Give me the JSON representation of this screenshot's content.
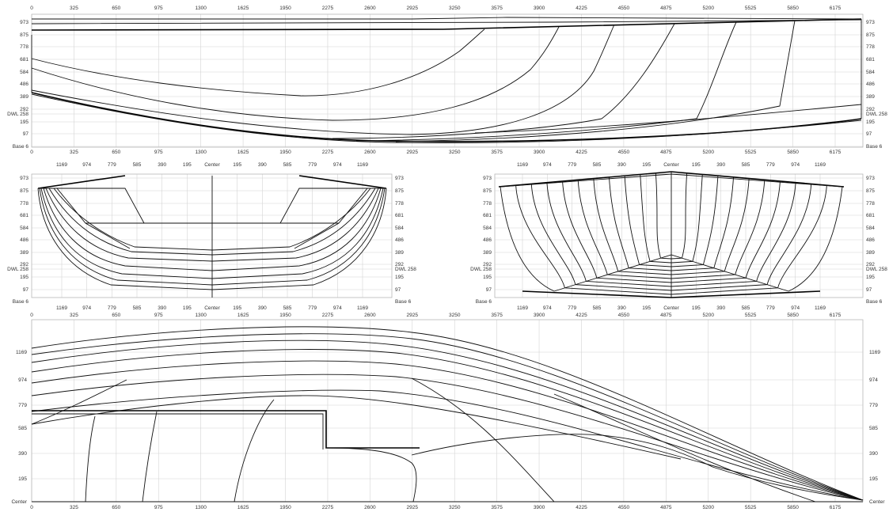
{
  "colors": {
    "line": "#111111",
    "grid": "#d4d4d4",
    "frame": "#b8b8b8",
    "text": "#333333",
    "background": "#ffffff"
  },
  "profile": {
    "x_ticks": [
      "0",
      "325",
      "650",
      "975",
      "1300",
      "1625",
      "1950",
      "2275",
      "2600",
      "2925",
      "3250",
      "3575",
      "3900",
      "4225",
      "4550",
      "4875",
      "5200",
      "5525",
      "5850",
      "6175"
    ],
    "y_ticks": [
      "973",
      "875",
      "778",
      "681",
      "584",
      "486",
      "389",
      "292",
      "DWL 258",
      "195",
      "97",
      "Base 6"
    ]
  },
  "body_aft": {
    "x_ticks": [
      "1169",
      "974",
      "779",
      "585",
      "390",
      "195",
      "Center",
      "195",
      "390",
      "585",
      "779",
      "974",
      "1169"
    ],
    "y_ticks": [
      "973",
      "875",
      "778",
      "681",
      "584",
      "486",
      "389",
      "292",
      "DWL 258",
      "195",
      "97",
      "Base 6"
    ]
  },
  "body_fwd": {
    "x_ticks": [
      "1169",
      "974",
      "779",
      "585",
      "390",
      "195",
      "Center",
      "195",
      "390",
      "585",
      "779",
      "974",
      "1169"
    ],
    "y_ticks": [
      "973",
      "875",
      "778",
      "681",
      "584",
      "486",
      "389",
      "292",
      "DWL 258",
      "195",
      "97",
      "Base 6"
    ]
  },
  "plan": {
    "x_ticks": [
      "0",
      "325",
      "650",
      "975",
      "1300",
      "1625",
      "1950",
      "2275",
      "2600",
      "2925",
      "3250",
      "3575",
      "3900",
      "4225",
      "4550",
      "4875",
      "5200",
      "5525",
      "5850",
      "6175"
    ],
    "y_ticks": [
      "1169",
      "974",
      "779",
      "585",
      "390",
      "195",
      "Center"
    ]
  }
}
